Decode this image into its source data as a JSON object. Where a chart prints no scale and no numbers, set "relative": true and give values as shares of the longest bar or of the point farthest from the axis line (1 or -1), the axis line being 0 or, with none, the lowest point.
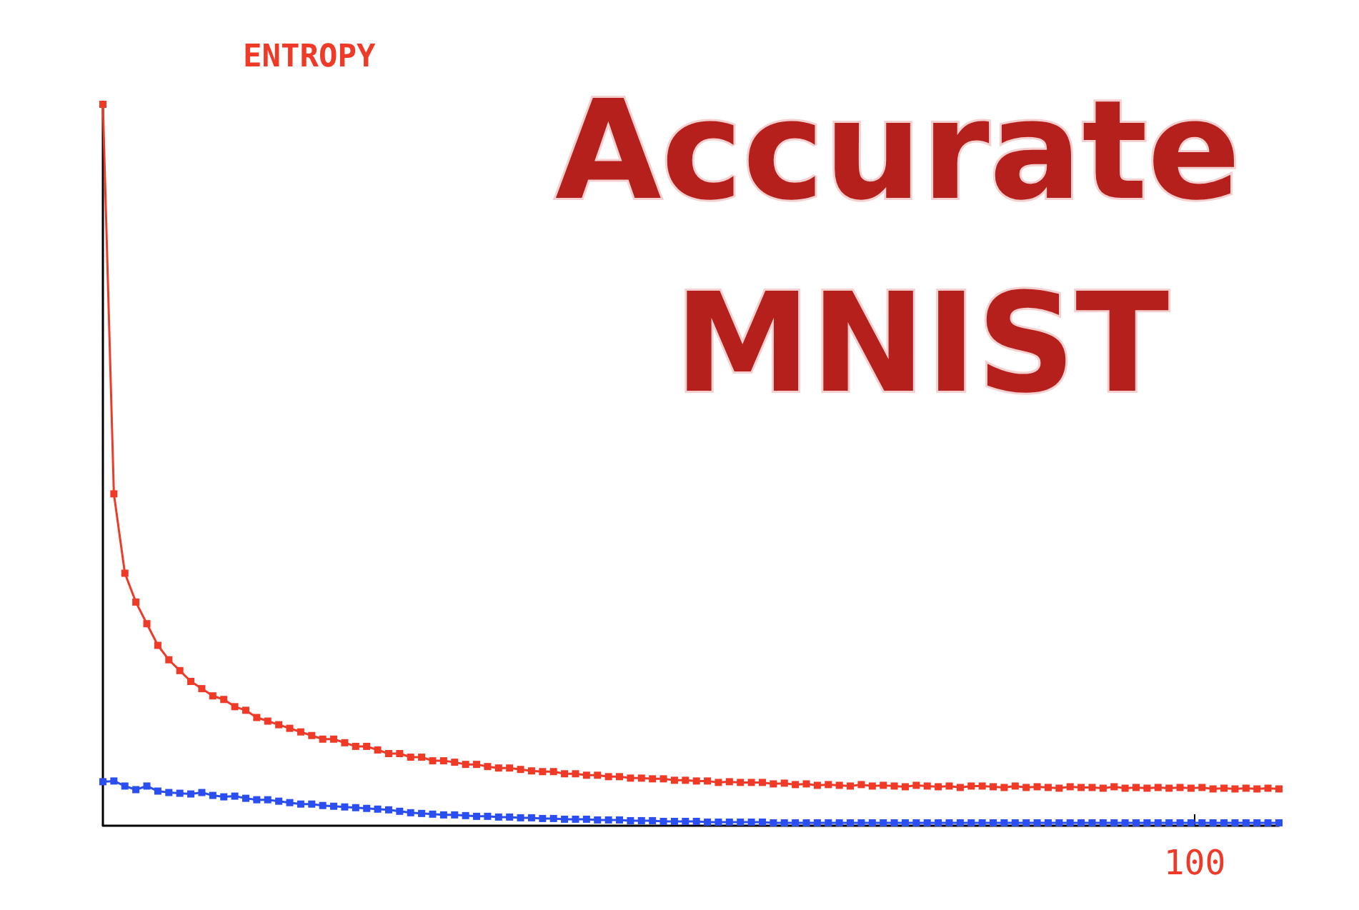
{
  "chart_data": {
    "type": "line",
    "title": "ENTROPY",
    "relative": true,
    "marker": "square",
    "annotations": [
      "Accurate MNIST",
      "100"
    ],
    "categories": [
      null,
      null,
      null,
      null,
      null,
      null,
      null,
      null,
      null,
      null,
      null,
      null,
      null,
      null,
      null,
      null,
      null,
      null,
      null,
      null,
      null,
      null,
      null,
      null,
      null,
      null,
      null,
      null,
      null,
      null,
      null,
      null,
      null,
      null,
      null,
      null,
      null,
      null,
      null,
      null,
      null,
      null,
      null,
      null,
      null,
      null,
      null,
      null,
      null,
      null,
      null,
      null,
      null,
      null,
      null,
      null,
      null,
      null,
      null,
      null,
      null,
      null,
      null,
      null,
      null,
      null,
      null,
      null,
      null,
      null,
      null,
      null,
      null,
      null,
      null,
      null,
      null,
      null,
      null,
      null,
      null,
      null,
      null,
      null,
      null,
      null,
      null,
      null,
      null,
      null,
      null,
      null,
      null,
      null,
      null,
      null,
      null,
      null,
      null,
      null,
      null,
      null,
      null,
      null,
      null,
      null,
      null,
      null
    ],
    "series": [
      {
        "color": "#f03a28",
        "values": [
          1.0,
          0.46,
          0.35,
          0.31,
          0.28,
          0.25,
          0.23,
          0.215,
          0.2,
          0.19,
          0.18,
          0.175,
          0.165,
          0.16,
          0.15,
          0.145,
          0.14,
          0.135,
          0.13,
          0.125,
          0.12,
          0.12,
          0.115,
          0.11,
          0.11,
          0.105,
          0.1,
          0.1,
          0.095,
          0.095,
          0.09,
          0.09,
          0.088,
          0.085,
          0.085,
          0.082,
          0.08,
          0.08,
          0.078,
          0.076,
          0.075,
          0.075,
          0.072,
          0.072,
          0.07,
          0.07,
          0.068,
          0.068,
          0.066,
          0.066,
          0.065,
          0.065,
          0.063,
          0.063,
          0.062,
          0.062,
          0.06,
          0.061,
          0.06,
          0.06,
          0.06,
          0.058,
          0.059,
          0.057,
          0.058,
          0.056,
          0.057,
          0.056,
          0.055,
          0.057,
          0.055,
          0.056,
          0.055,
          0.054,
          0.056,
          0.055,
          0.054,
          0.055,
          0.053,
          0.055,
          0.055,
          0.054,
          0.053,
          0.055,
          0.053,
          0.054,
          0.053,
          0.052,
          0.054,
          0.053,
          0.053,
          0.052,
          0.054,
          0.052,
          0.053,
          0.052,
          0.053,
          0.052,
          0.053,
          0.052,
          0.053,
          0.051,
          0.052,
          0.051,
          0.052,
          0.051,
          0.052,
          0.051
        ]
      },
      {
        "color": "#2a4ef0",
        "values": [
          0.061,
          0.062,
          0.055,
          0.05,
          0.055,
          0.048,
          0.046,
          0.045,
          0.044,
          0.046,
          0.042,
          0.04,
          0.041,
          0.038,
          0.036,
          0.036,
          0.034,
          0.032,
          0.03,
          0.03,
          0.028,
          0.027,
          0.026,
          0.025,
          0.024,
          0.023,
          0.022,
          0.02,
          0.018,
          0.017,
          0.016,
          0.015,
          0.015,
          0.014,
          0.013,
          0.013,
          0.012,
          0.012,
          0.011,
          0.011,
          0.01,
          0.01,
          0.009,
          0.009,
          0.009,
          0.008,
          0.008,
          0.008,
          0.007,
          0.007,
          0.007,
          0.006,
          0.006,
          0.006,
          0.006,
          0.005,
          0.005,
          0.005,
          0.005,
          0.005,
          0.005,
          0.004,
          0.004,
          0.004,
          0.004,
          0.004,
          0.004,
          0.004,
          0.004,
          0.004,
          0.004,
          0.004,
          0.004,
          0.004,
          0.004,
          0.004,
          0.004,
          0.004,
          0.004,
          0.004,
          0.004,
          0.004,
          0.004,
          0.004,
          0.004,
          0.004,
          0.004,
          0.004,
          0.004,
          0.004,
          0.004,
          0.004,
          0.004,
          0.004,
          0.004,
          0.004,
          0.004,
          0.004,
          0.004,
          0.004,
          0.004,
          0.004,
          0.004,
          0.004,
          0.004,
          0.004,
          0.004,
          0.004
        ]
      }
    ]
  }
}
